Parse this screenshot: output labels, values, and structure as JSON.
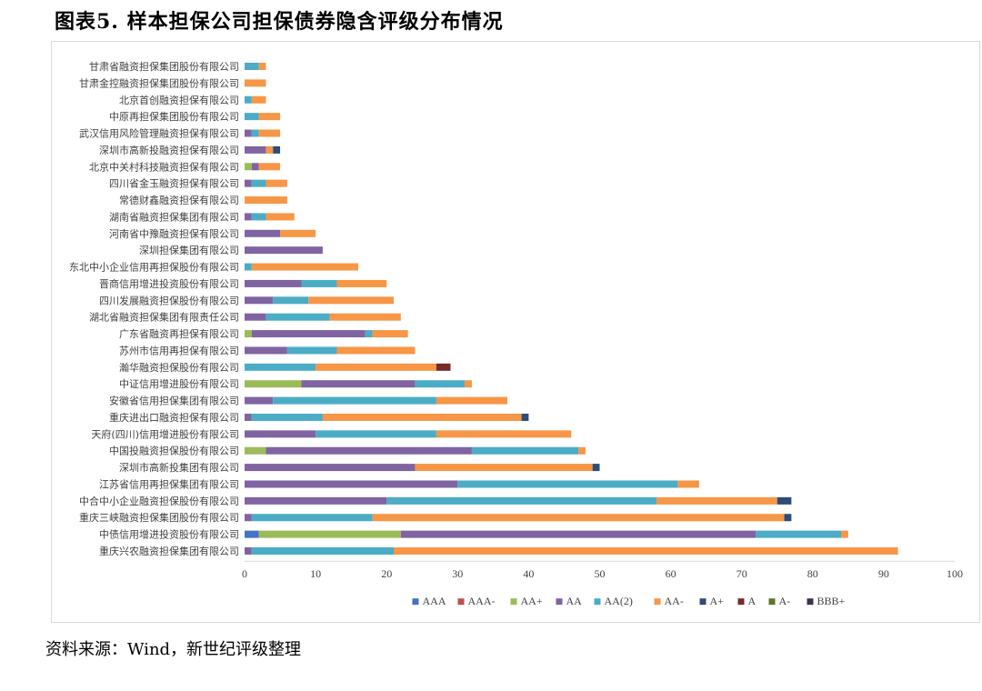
{
  "page": {
    "title": "图表5. 样本担保公司担保债券隐含评级分布情况",
    "source": "资料来源：Wind，新世纪评级整理"
  },
  "chart_data": {
    "type": "bar",
    "orientation": "horizontal",
    "stacked": true,
    "title": "",
    "xlabel": "",
    "ylabel": "",
    "xlim": [
      0,
      100
    ],
    "xticks": [
      0,
      10,
      20,
      30,
      40,
      50,
      60,
      70,
      80,
      90,
      100
    ],
    "grid": false,
    "legend_position": "bottom",
    "categories": [
      "甘肃省融资担保集团股份有限公司",
      "甘肃金控融资担保集团股份有限公司",
      "北京首创融资担保有限公司",
      "中原再担保集团股份有限公司",
      "武汉信用风险管理融资担保有限公司",
      "深圳市高新投融资担保有限公司",
      "北京中关村科技融资担保有限公司",
      "四川省金玉融资担保有限公司",
      "常德财鑫融资担保有限公司",
      "湖南省融资担保集团有限公司",
      "河南省中豫融资担保有限公司",
      "深圳担保集团有限公司",
      "东北中小企业信用再担保股份有限公司",
      "晋商信用增进投资股份有限公司",
      "四川发展融资担保股份有限公司",
      "湖北省融资担保集团有限责任公司",
      "广东省融资再担保有限公司",
      "苏州市信用再担保有限公司",
      "瀚华融资担保股份有限公司",
      "中证信用增进股份有限公司",
      "安徽省信用担保集团有限公司",
      "重庆进出口融资担保有限公司",
      "天府(四川)信用增进股份有限公司",
      "中国投融资担保股份有限公司",
      "深圳市高新投集团有限公司",
      "江苏省信用再担保集团有限公司",
      "中合中小企业融资担保股份有限公司",
      "重庆三峡融资担保集团股份有限公司",
      "中债信用增进投资股份有限公司",
      "重庆兴农融资担保集团有限公司"
    ],
    "series": [
      {
        "name": "AAA",
        "color": "#4472c4",
        "values": [
          0,
          0,
          0,
          0,
          0,
          0,
          0,
          0,
          0,
          0,
          0,
          0,
          0,
          0,
          0,
          0,
          0,
          0,
          0,
          0,
          0,
          0,
          0,
          0,
          0,
          0,
          0,
          0,
          2,
          0
        ]
      },
      {
        "name": "AAA-",
        "color": "#c0504d",
        "values": [
          0,
          0,
          0,
          0,
          0,
          0,
          0,
          0,
          0,
          0,
          0,
          0,
          0,
          0,
          0,
          0,
          0,
          0,
          0,
          0,
          0,
          0,
          0,
          0,
          0,
          0,
          0,
          0,
          0,
          0
        ]
      },
      {
        "name": "AA+",
        "color": "#9bbb59",
        "values": [
          0,
          0,
          0,
          0,
          0,
          0,
          1,
          0,
          0,
          0,
          0,
          0,
          0,
          0,
          0,
          0,
          1,
          0,
          0,
          8,
          0,
          0,
          0,
          3,
          0,
          0,
          0,
          0,
          20,
          0
        ]
      },
      {
        "name": "AA",
        "color": "#8064a2",
        "values": [
          0,
          0,
          0,
          0,
          1,
          3,
          1,
          1,
          0,
          1,
          5,
          11,
          0,
          8,
          4,
          3,
          16,
          6,
          0,
          16,
          4,
          1,
          10,
          29,
          24,
          30,
          20,
          1,
          50,
          1
        ]
      },
      {
        "name": "AA(2)",
        "color": "#4bacc6",
        "values": [
          2,
          0,
          1,
          2,
          1,
          0,
          0,
          2,
          0,
          2,
          0,
          0,
          1,
          5,
          5,
          9,
          1,
          7,
          10,
          7,
          23,
          10,
          17,
          15,
          0,
          31,
          38,
          17,
          12,
          20
        ]
      },
      {
        "name": "AA-",
        "color": "#f79646",
        "values": [
          1,
          3,
          2,
          3,
          3,
          1,
          3,
          3,
          6,
          4,
          5,
          0,
          15,
          7,
          12,
          10,
          5,
          11,
          17,
          1,
          10,
          28,
          19,
          1,
          25,
          3,
          17,
          58,
          1,
          71
        ]
      },
      {
        "name": "A+",
        "color": "#2c4d75",
        "values": [
          0,
          0,
          0,
          0,
          0,
          1,
          0,
          0,
          0,
          0,
          0,
          0,
          0,
          0,
          0,
          0,
          0,
          0,
          0,
          0,
          0,
          1,
          0,
          0,
          1,
          0,
          2,
          1,
          0,
          0
        ]
      },
      {
        "name": "A",
        "color": "#772c2a",
        "values": [
          0,
          0,
          0,
          0,
          0,
          0,
          0,
          0,
          0,
          0,
          0,
          0,
          0,
          0,
          0,
          0,
          0,
          0,
          2,
          0,
          0,
          0,
          0,
          0,
          0,
          0,
          0,
          0,
          0,
          0
        ]
      },
      {
        "name": "A-",
        "color": "#5f7530",
        "values": [
          0,
          0,
          0,
          0,
          0,
          0,
          0,
          0,
          0,
          0,
          0,
          0,
          0,
          0,
          0,
          0,
          0,
          0,
          0,
          0,
          0,
          0,
          0,
          0,
          0,
          0,
          0,
          0,
          0,
          0
        ]
      },
      {
        "name": "BBB+",
        "color": "#403152",
        "values": [
          0,
          0,
          0,
          0,
          0,
          0,
          0,
          0,
          0,
          0,
          0,
          0,
          0,
          0,
          0,
          0,
          0,
          0,
          0,
          0,
          0,
          0,
          0,
          0,
          0,
          0,
          0,
          0,
          0,
          0
        ]
      }
    ]
  }
}
